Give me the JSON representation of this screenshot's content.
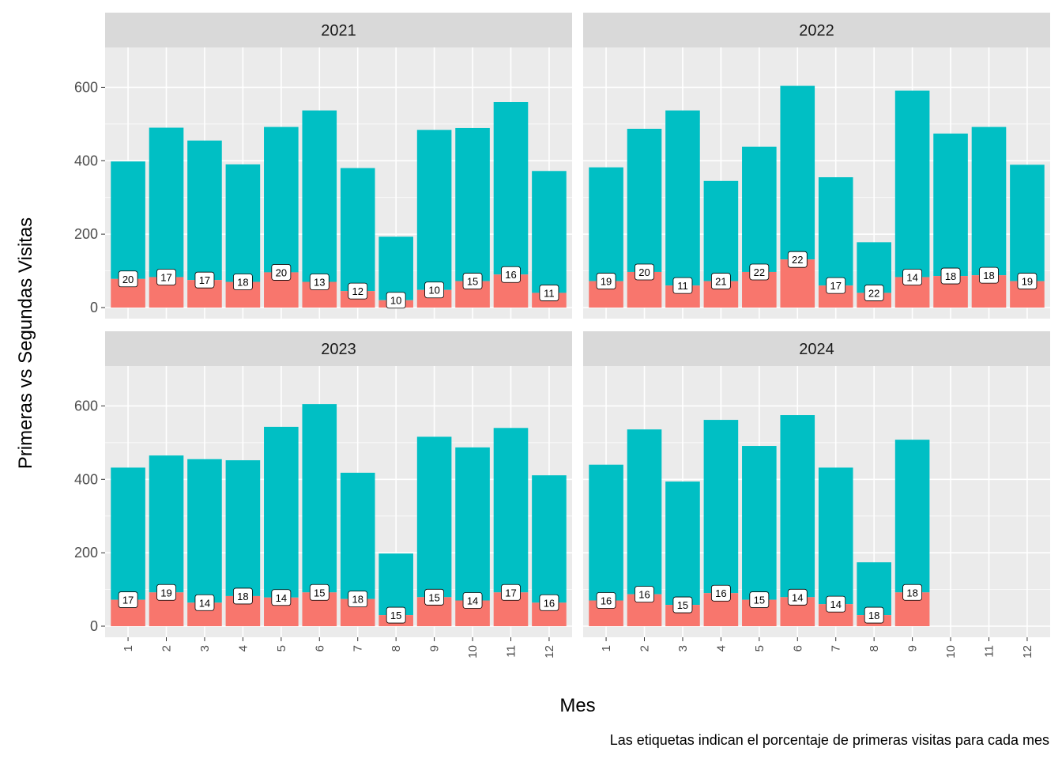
{
  "chart_data": {
    "type": "bar",
    "stacked": true,
    "facet_by": "year",
    "xlabel": "Mes",
    "ylabel": "Primeras vs Segundas Visitas",
    "caption": "Las etiquetas indican el porcentaje de primeras visitas para cada mes",
    "ylim": [
      0,
      700
    ],
    "yticks": [
      0,
      200,
      400,
      600
    ],
    "categories": [
      "1",
      "2",
      "3",
      "4",
      "5",
      "6",
      "7",
      "8",
      "9",
      "10",
      "11",
      "12"
    ],
    "grid": true,
    "colors": {
      "first": "#F8766D",
      "second": "#00BFC4",
      "panel": "#EBEBEB",
      "strip": "#D9D9D9",
      "grid": "#FFFFFF"
    },
    "panels": [
      {
        "title": "2021",
        "total": [
          398,
          490,
          455,
          390,
          492,
          537,
          380,
          193,
          484,
          489,
          560,
          372
        ],
        "first": [
          78,
          83,
          75,
          70,
          96,
          70,
          45,
          20,
          48,
          72,
          90,
          40
        ],
        "labels": [
          "20",
          "17",
          "17",
          "18",
          "20",
          "13",
          "12",
          "10",
          "10",
          "15",
          "16",
          "11"
        ]
      },
      {
        "title": "2022",
        "total": [
          382,
          487,
          537,
          345,
          438,
          604,
          355,
          178,
          591,
          474,
          492,
          389
        ],
        "first": [
          72,
          97,
          60,
          72,
          97,
          131,
          60,
          40,
          83,
          86,
          88,
          72
        ],
        "labels": [
          "19",
          "20",
          "11",
          "21",
          "22",
          "22",
          "17",
          "22",
          "14",
          "18",
          "18",
          "19"
        ]
      },
      {
        "title": "2023",
        "total": [
          432,
          465,
          455,
          452,
          543,
          605,
          418,
          198,
          516,
          487,
          540,
          411
        ],
        "first": [
          72,
          92,
          64,
          82,
          78,
          92,
          74,
          30,
          79,
          70,
          92,
          64
        ],
        "labels": [
          "17",
          "19",
          "14",
          "18",
          "14",
          "15",
          "18",
          "15",
          "15",
          "14",
          "17",
          "16"
        ]
      },
      {
        "title": "2024",
        "total": [
          440,
          536,
          394,
          562,
          491,
          575,
          432,
          174,
          508,
          null,
          null,
          null
        ],
        "first": [
          70,
          87,
          58,
          90,
          72,
          79,
          60,
          30,
          92,
          null,
          null,
          null
        ],
        "labels": [
          "16",
          "16",
          "15",
          "16",
          "15",
          "14",
          "14",
          "18",
          "18",
          null,
          null,
          null
        ]
      }
    ]
  }
}
